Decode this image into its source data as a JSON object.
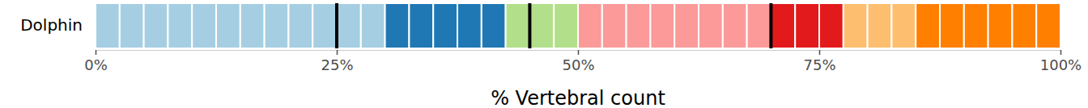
{
  "chart_data": {
    "type": "bar",
    "orientation": "horizontal",
    "stacked": true,
    "grid": false,
    "categories": [
      "Dolphin"
    ],
    "xlabel": "% Vertebral count",
    "xlim": [
      0,
      100
    ],
    "xticks": [
      {
        "value": 0,
        "label": "0%"
      },
      {
        "value": 25,
        "label": "25%"
      },
      {
        "value": 50,
        "label": "50%"
      },
      {
        "value": 75,
        "label": "75%"
      },
      {
        "value": 100,
        "label": "100%"
      }
    ],
    "vlines": [
      25,
      45,
      70
    ],
    "series": [
      {
        "color": "#a6cee3",
        "values": [
          2.5
        ]
      },
      {
        "color": "#a6cee3",
        "values": [
          2.5
        ]
      },
      {
        "color": "#a6cee3",
        "values": [
          2.5
        ]
      },
      {
        "color": "#a6cee3",
        "values": [
          2.5
        ]
      },
      {
        "color": "#a6cee3",
        "values": [
          2.5
        ]
      },
      {
        "color": "#a6cee3",
        "values": [
          2.5
        ]
      },
      {
        "color": "#a6cee3",
        "values": [
          2.5
        ]
      },
      {
        "color": "#a6cee3",
        "values": [
          2.5
        ]
      },
      {
        "color": "#a6cee3",
        "values": [
          2.5
        ]
      },
      {
        "color": "#a6cee3",
        "values": [
          2.5
        ]
      },
      {
        "color": "#a6cee3",
        "values": [
          2.5
        ]
      },
      {
        "color": "#a6cee3",
        "values": [
          2.5
        ]
      },
      {
        "color": "#1f78b4",
        "values": [
          2.5
        ]
      },
      {
        "color": "#1f78b4",
        "values": [
          2.5
        ]
      },
      {
        "color": "#1f78b4",
        "values": [
          2.5
        ]
      },
      {
        "color": "#1f78b4",
        "values": [
          2.5
        ]
      },
      {
        "color": "#1f78b4",
        "values": [
          2.5
        ]
      },
      {
        "color": "#b2df8a",
        "values": [
          2.5
        ]
      },
      {
        "color": "#b2df8a",
        "values": [
          2.5
        ]
      },
      {
        "color": "#b2df8a",
        "values": [
          2.5
        ]
      },
      {
        "color": "#fb9a99",
        "values": [
          2.5
        ]
      },
      {
        "color": "#fb9a99",
        "values": [
          2.5
        ]
      },
      {
        "color": "#fb9a99",
        "values": [
          2.5
        ]
      },
      {
        "color": "#fb9a99",
        "values": [
          2.5
        ]
      },
      {
        "color": "#fb9a99",
        "values": [
          2.5
        ]
      },
      {
        "color": "#fb9a99",
        "values": [
          2.5
        ]
      },
      {
        "color": "#fb9a99",
        "values": [
          2.5
        ]
      },
      {
        "color": "#fb9a99",
        "values": [
          2.5
        ]
      },
      {
        "color": "#e31a1c",
        "values": [
          2.5
        ]
      },
      {
        "color": "#e31a1c",
        "values": [
          2.5
        ]
      },
      {
        "color": "#e31a1c",
        "values": [
          2.5
        ]
      },
      {
        "color": "#fdbf6f",
        "values": [
          2.5
        ]
      },
      {
        "color": "#fdbf6f",
        "values": [
          2.5
        ]
      },
      {
        "color": "#fdbf6f",
        "values": [
          2.5
        ]
      },
      {
        "color": "#ff7f00",
        "values": [
          2.5
        ]
      },
      {
        "color": "#ff7f00",
        "values": [
          2.5
        ]
      },
      {
        "color": "#ff7f00",
        "values": [
          2.5
        ]
      },
      {
        "color": "#ff7f00",
        "values": [
          2.5
        ]
      },
      {
        "color": "#ff7f00",
        "values": [
          2.5
        ]
      },
      {
        "color": "#ff7f00",
        "values": [
          2.5
        ]
      }
    ]
  }
}
